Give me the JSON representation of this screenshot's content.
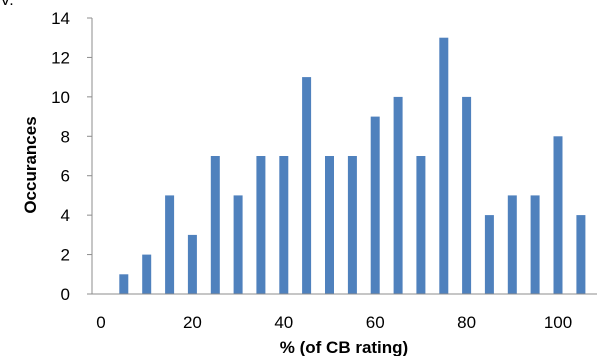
{
  "corner_text": "V.",
  "chart_data": {
    "type": "bar",
    "xlabel": "% (of CB rating)",
    "ylabel": "Occurances",
    "xlim": [
      0,
      105
    ],
    "ylim": [
      0,
      14
    ],
    "x_ticks": [
      0,
      20,
      40,
      60,
      80,
      100
    ],
    "y_ticks": [
      0,
      2,
      4,
      6,
      8,
      10,
      12,
      14
    ],
    "grid": false,
    "bar_color": "#4f81bd",
    "categories": [
      5,
      10,
      15,
      20,
      25,
      30,
      35,
      40,
      45,
      50,
      55,
      60,
      65,
      70,
      75,
      80,
      85,
      90,
      95,
      100,
      105
    ],
    "values": [
      1,
      2,
      5,
      3,
      7,
      5,
      7,
      7,
      11,
      7,
      7,
      9,
      10,
      7,
      13,
      10,
      4,
      5,
      5,
      8,
      4
    ]
  }
}
